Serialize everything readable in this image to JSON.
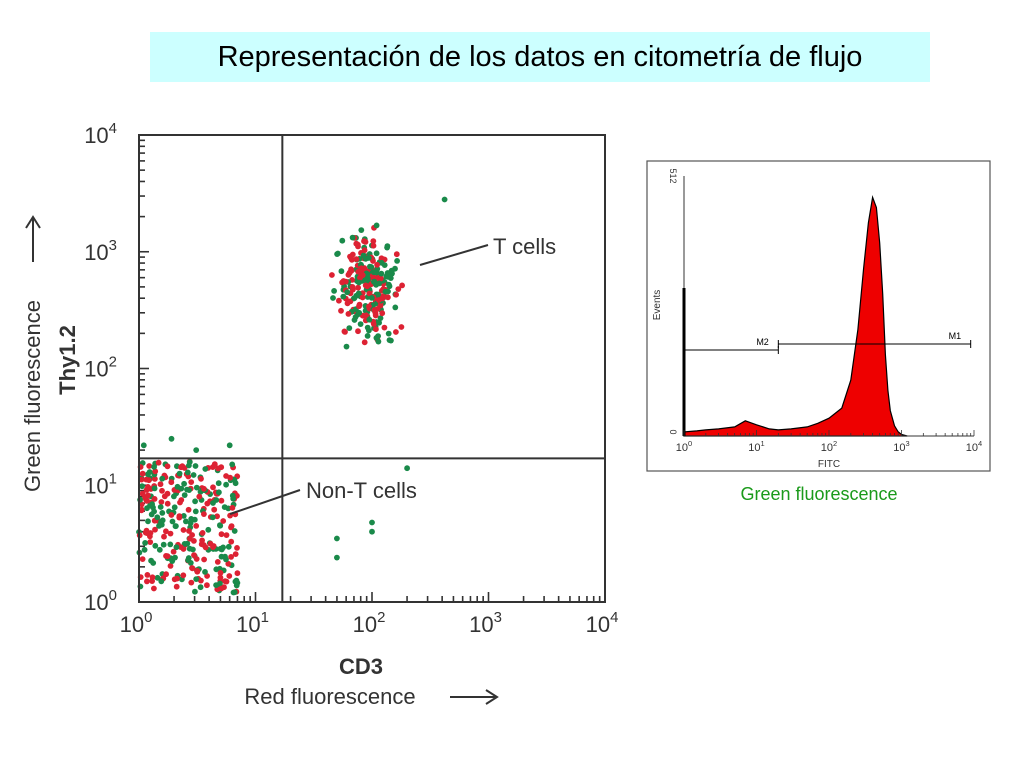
{
  "slide": {
    "title": "Representación de los datos en citometría de flujo",
    "title_bg": "#ccffff"
  },
  "chart_data": [
    {
      "type": "scatter",
      "xlabel": "CD3",
      "xlabel_sub": "Red fluorescence",
      "ylabel": "Thy1.2",
      "ylabel_sub": "Green fluorescence",
      "xscale": "log",
      "yscale": "log",
      "xlim": [
        1,
        10000
      ],
      "ylim": [
        1,
        10000
      ],
      "x_tick_labels": [
        "10^0",
        "10^1",
        "10^2",
        "10^3",
        "10^4"
      ],
      "y_tick_labels": [
        "10^0",
        "10^1",
        "10^2",
        "10^3",
        "10^4"
      ],
      "gates": {
        "x": 17,
        "y": 17
      },
      "colors": {
        "green": "#1a8a4a",
        "red": "#dd2233"
      },
      "annotations": [
        {
          "text": "T cells",
          "points_to": "upper-right cluster"
        },
        {
          "text": "Non-T cells",
          "points_to": "lower-left cluster"
        }
      ],
      "populations": [
        {
          "label": "T cells",
          "x_range": [
            30,
            300
          ],
          "y_range": [
            50,
            2200
          ],
          "count": 260,
          "colors": [
            "green",
            "red"
          ]
        },
        {
          "label": "Non-T cells",
          "x_range": [
            1,
            7
          ],
          "y_range": [
            1.2,
            16
          ],
          "count": 320,
          "colors": [
            "green",
            "red"
          ]
        }
      ],
      "outliers": [
        {
          "x": 420,
          "y": 2800
        },
        {
          "x": 1.1,
          "y": 22
        },
        {
          "x": 1.9,
          "y": 25
        },
        {
          "x": 3.1,
          "y": 20
        },
        {
          "x": 6,
          "y": 22
        },
        {
          "x": 200,
          "y": 14
        },
        {
          "x": 100,
          "y": 4.8
        },
        {
          "x": 100,
          "y": 4.0
        },
        {
          "x": 50,
          "y": 3.5
        },
        {
          "x": 50,
          "y": 2.4
        }
      ]
    },
    {
      "type": "area",
      "ylabel": "Events",
      "xlabel": "FITC",
      "xscale": "log",
      "xlim": [
        1,
        10000
      ],
      "ylim": [
        0,
        512
      ],
      "y_tick_labels": [
        "0",
        "512"
      ],
      "x_tick_labels": [
        "10^0",
        "10^1",
        "10^2",
        "10^3",
        "10^4"
      ],
      "caption": "Green fluorescence",
      "fill_color": "#ee0000",
      "markers": [
        {
          "label": "M2",
          "from": 1,
          "to": 20
        },
        {
          "label": "M1",
          "from": 20,
          "to": 9000
        }
      ],
      "x": [
        1,
        1.5,
        2,
        3,
        5,
        7,
        10,
        15,
        20,
        30,
        50,
        70,
        100,
        150,
        200,
        250,
        300,
        350,
        400,
        450,
        500,
        550,
        600,
        650,
        700,
        800,
        900,
        1000,
        1200
      ],
      "y": [
        8,
        10,
        12,
        14,
        18,
        30,
        22,
        14,
        12,
        14,
        18,
        25,
        35,
        55,
        110,
        210,
        330,
        420,
        470,
        450,
        380,
        280,
        160,
        90,
        50,
        20,
        8,
        3,
        0
      ]
    }
  ]
}
